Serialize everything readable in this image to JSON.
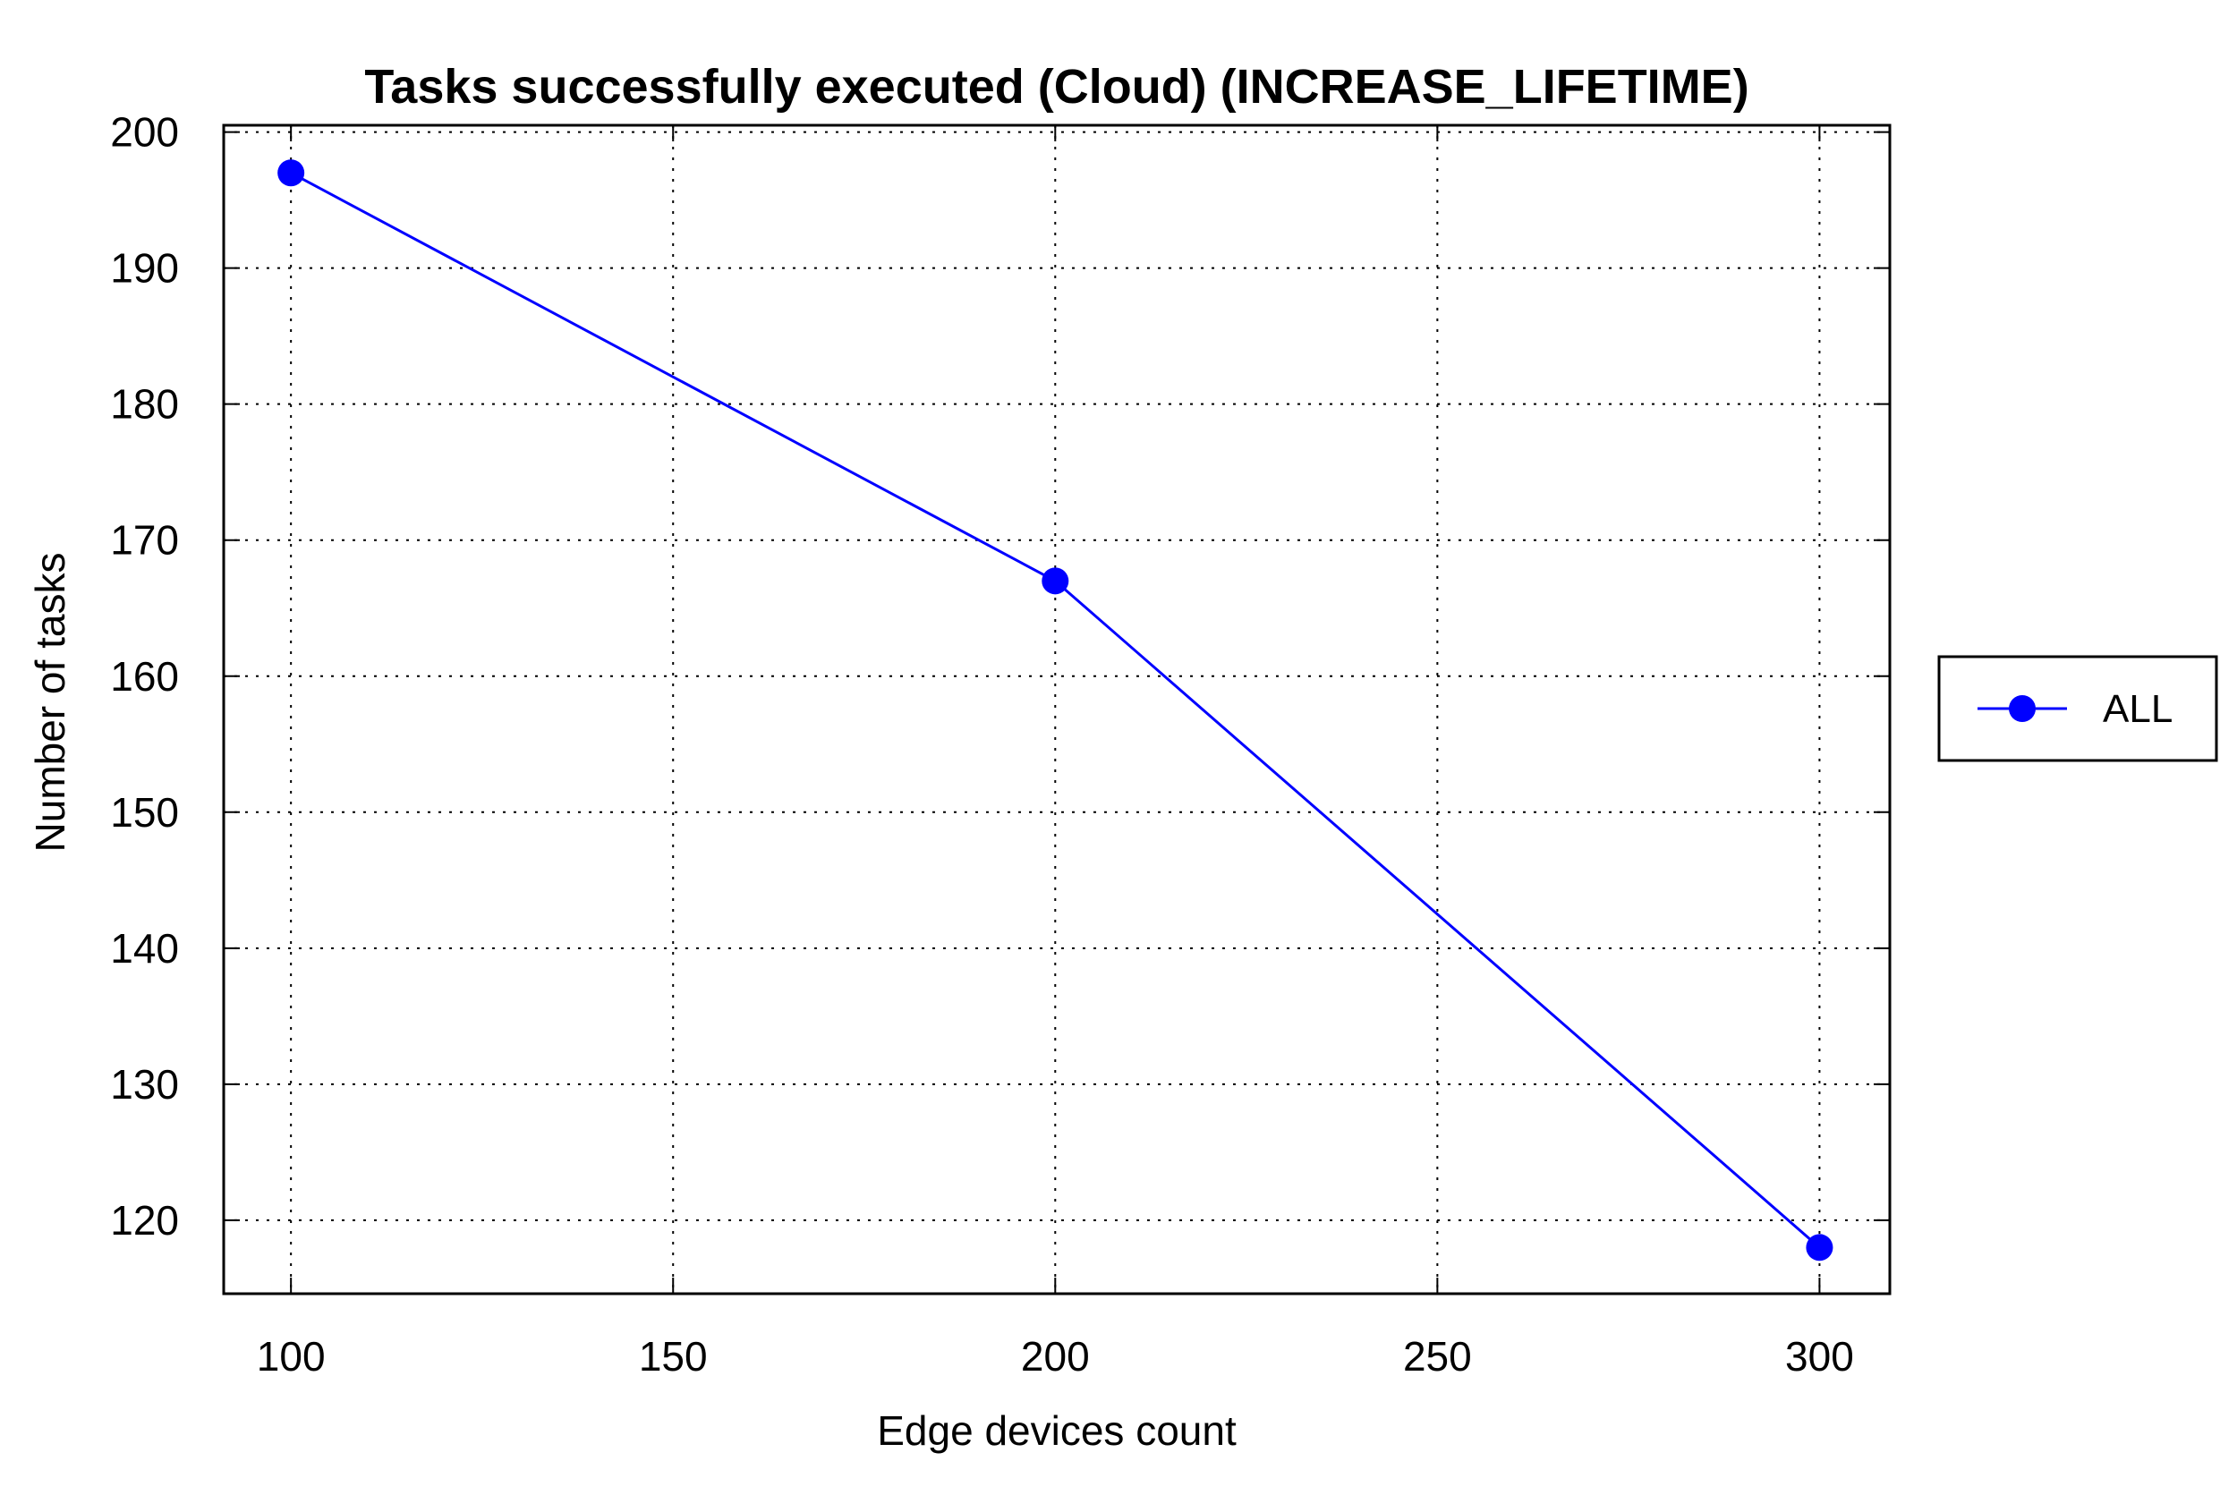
{
  "chart_data": {
    "type": "line",
    "title": "Tasks successfully executed (Cloud) (INCREASE_LIFETIME)",
    "xlabel": "Edge devices count",
    "ylabel": "Number of tasks",
    "xlim": [
      91.2,
      309.2
    ],
    "ylim": [
      114.6,
      200.5
    ],
    "xticks": [
      100,
      150,
      200,
      250,
      300
    ],
    "yticks": [
      120,
      130,
      140,
      150,
      160,
      170,
      180,
      190,
      200
    ],
    "grid": true,
    "grid_style": "dotted",
    "legend_position": "right",
    "x": [
      100,
      200,
      300
    ],
    "series": [
      {
        "name": "ALL",
        "values": [
          197,
          167,
          118
        ],
        "color": "#0000ff",
        "marker": "circle"
      }
    ]
  },
  "colors": {
    "series": "#0000ff",
    "axes": "#000000",
    "grid": "#000000"
  }
}
